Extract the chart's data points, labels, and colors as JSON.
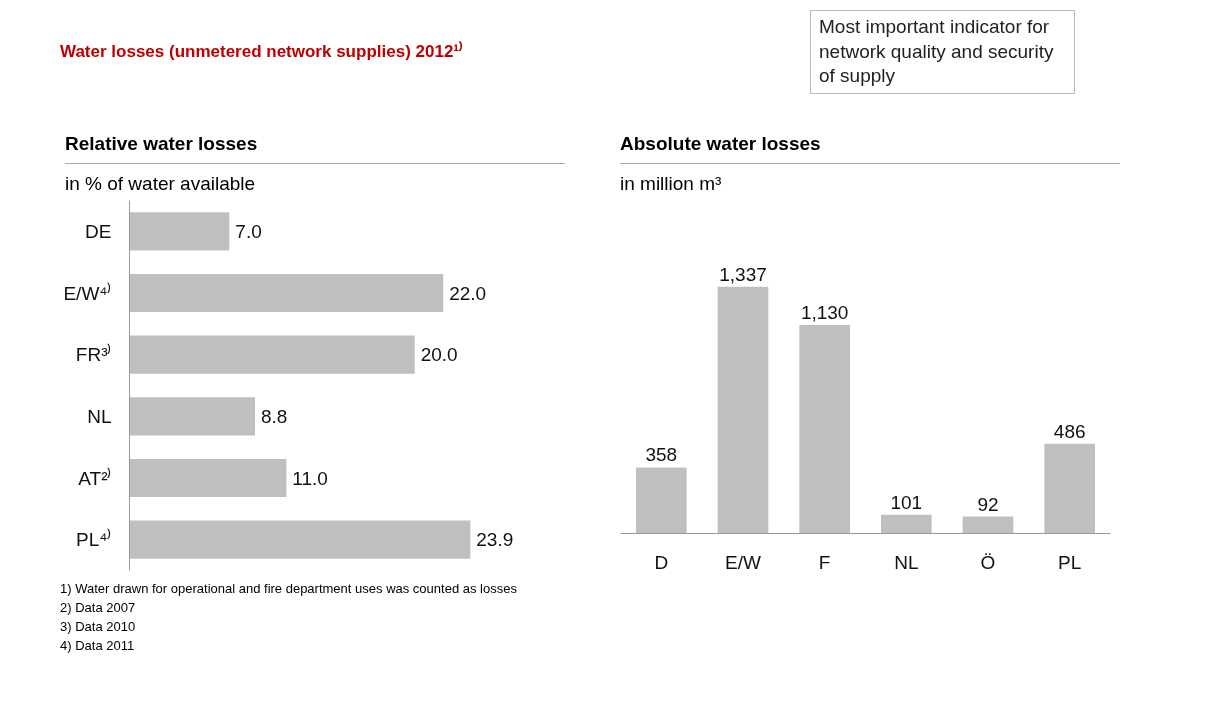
{
  "chart_data": [
    {
      "type": "other",
      "title": "Water losses (unmetered network supplies) 2012¹⁾",
      "annotations": [
        "Most important indicator for network quality and security of supply"
      ]
    },
    {
      "type": "bar",
      "orientation": "horizontal",
      "title": "Relative water losses",
      "subtitle": "in % of water available",
      "categories": [
        "DE",
        "E/W⁴⁾",
        "FR³⁾",
        "NL",
        "AT²⁾",
        "PL⁴⁾"
      ],
      "values": [
        7.0,
        22.0,
        20.0,
        8.8,
        11.0,
        23.9
      ],
      "value_labels": [
        "7.0",
        "22.0",
        "20.0",
        "8.8",
        "11.0",
        "23.9"
      ],
      "color": "#bfbfbf",
      "tick_labels": "y",
      "annotations": [
        "1) Water drawn for operational and fire department uses was counted as losses",
        "2) Data 2007",
        "3) Data 2010",
        "4) Data 2011"
      ]
    },
    {
      "type": "bar",
      "title": "Absolute water losses",
      "subtitle": "in million m³",
      "categories": [
        "D",
        "E/W",
        "F",
        "NL",
        "Ö",
        "PL"
      ],
      "values": [
        358,
        1337,
        1130,
        101,
        92,
        486
      ],
      "value_labels": [
        "358",
        "1,337",
        "1,130",
        "101",
        "92",
        "486"
      ],
      "color": "#bfbfbf",
      "tick_labels": "x"
    }
  ]
}
